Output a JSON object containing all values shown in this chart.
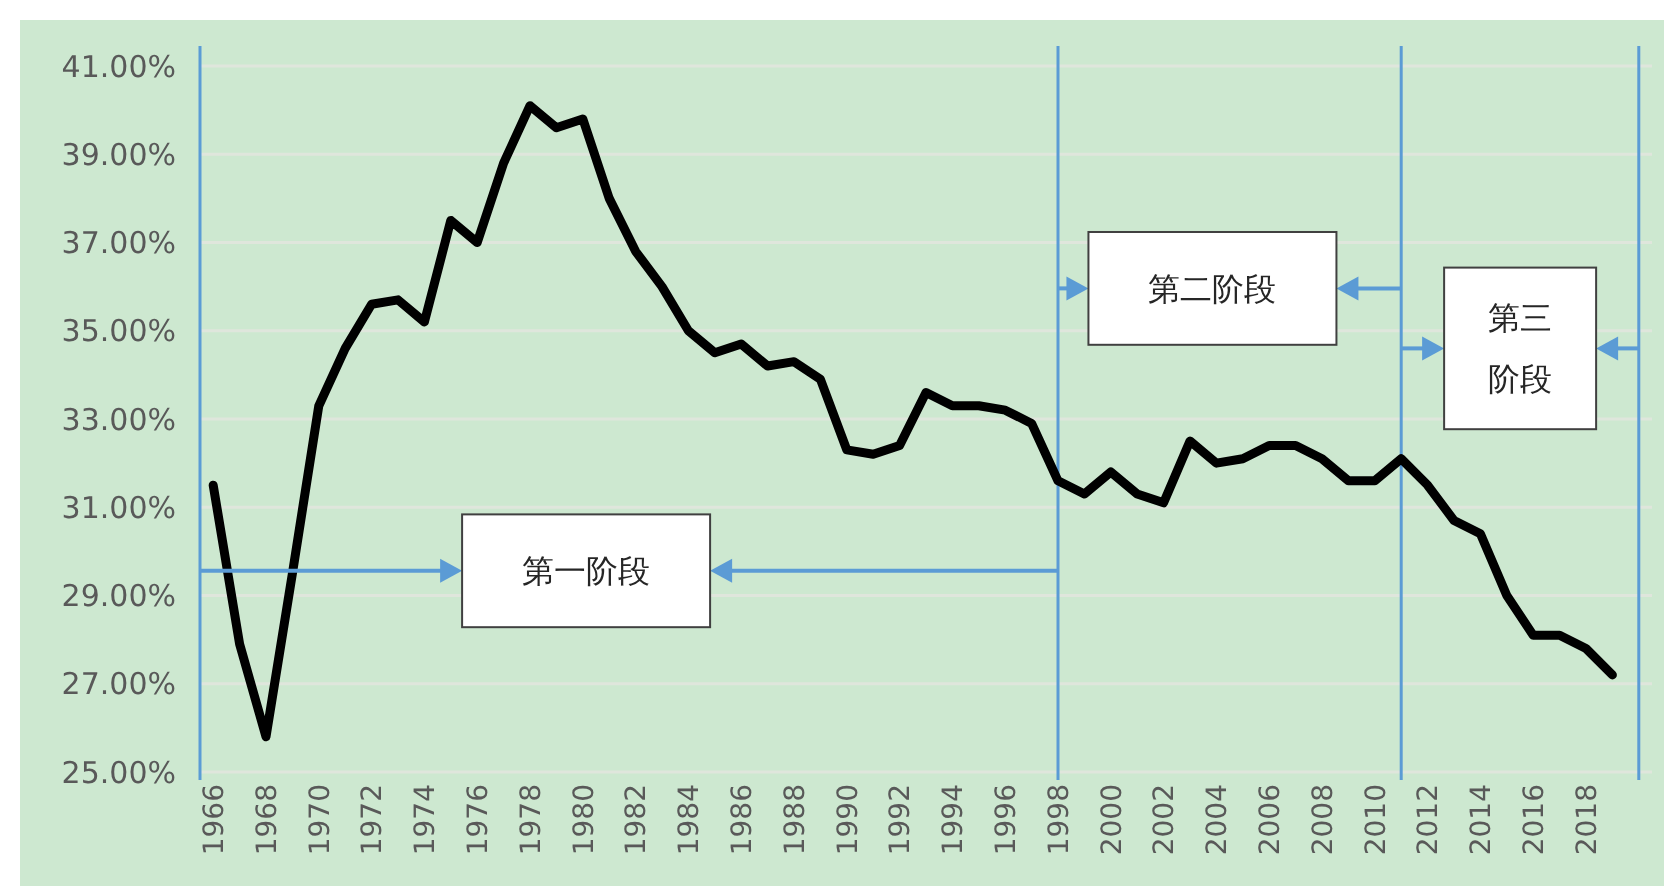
{
  "chart_data": {
    "type": "line",
    "x": [
      1966,
      1967,
      1968,
      1969,
      1970,
      1971,
      1972,
      1973,
      1974,
      1975,
      1976,
      1977,
      1978,
      1979,
      1980,
      1981,
      1982,
      1983,
      1984,
      1985,
      1986,
      1987,
      1988,
      1989,
      1990,
      1991,
      1992,
      1993,
      1994,
      1995,
      1996,
      1997,
      1998,
      1999,
      2000,
      2001,
      2002,
      2003,
      2004,
      2005,
      2006,
      2007,
      2008,
      2009,
      2010,
      2011,
      2012,
      2013,
      2014,
      2015,
      2016,
      2017,
      2018,
      2019
    ],
    "series": [
      {
        "color": "#000000",
        "values": [
          31.5,
          27.9,
          25.8,
          29.5,
          33.3,
          34.6,
          35.6,
          35.7,
          35.2,
          37.5,
          37.0,
          38.8,
          40.1,
          39.6,
          39.8,
          38.0,
          36.8,
          36.0,
          35.0,
          34.5,
          34.7,
          34.2,
          34.3,
          33.9,
          32.3,
          32.2,
          32.4,
          33.6,
          33.3,
          33.3,
          33.2,
          32.9,
          31.6,
          31.3,
          31.8,
          31.3,
          31.1,
          32.5,
          32.0,
          32.1,
          32.4,
          32.4,
          32.1,
          31.6,
          31.6,
          32.1,
          31.5,
          30.7,
          30.4,
          29.0,
          28.1,
          28.1,
          27.8,
          27.2
        ]
      }
    ],
    "xlim": [
      1965.5,
      2020.5
    ],
    "xticks": [
      1966,
      1968,
      1970,
      1972,
      1974,
      1976,
      1978,
      1980,
      1982,
      1984,
      1986,
      1988,
      1990,
      1992,
      1994,
      1996,
      1998,
      2000,
      2002,
      2004,
      2006,
      2008,
      2010,
      2012,
      2014,
      2016,
      2018
    ],
    "ylim": [
      25,
      41
    ],
    "yticks": [
      {
        "value": 25,
        "label": "25.00%"
      },
      {
        "value": 27,
        "label": "27.00%"
      },
      {
        "value": 29,
        "label": "29.00%"
      },
      {
        "value": 31,
        "label": "31.00%"
      },
      {
        "value": 33,
        "label": "33.00%"
      },
      {
        "value": 35,
        "label": "35.00%"
      },
      {
        "value": 37,
        "label": "37.00%"
      },
      {
        "value": 39,
        "label": "39.00%"
      },
      {
        "value": 41,
        "label": "41.00%"
      }
    ],
    "grid": "y",
    "marker": "none",
    "line_style": "solid",
    "ref_lines": [
      {
        "axis": "x",
        "value": 1998,
        "color": "#5b9bd5"
      },
      {
        "axis": "x",
        "value": 2011,
        "color": "#5b9bd5"
      },
      {
        "axis": "x",
        "value": 2020,
        "color": "#5b9bd5"
      }
    ],
    "annotations": [
      "第一阶段",
      "第二阶段",
      "第三阶段"
    ]
  }
}
